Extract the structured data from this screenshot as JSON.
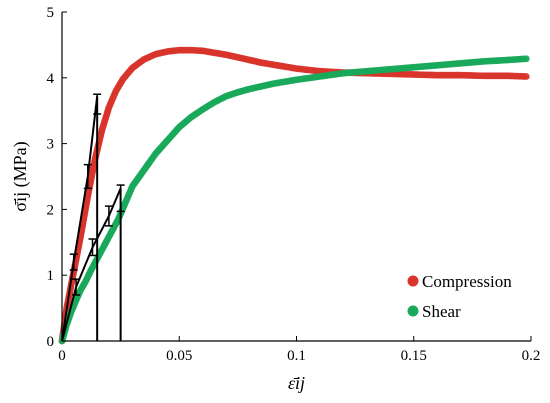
{
  "chart_data": {
    "type": "scatter",
    "title": "",
    "xlabel": "ε̄ij",
    "ylabel": "σ̄ij (MPa)",
    "xlim": [
      0,
      0.2
    ],
    "ylim": [
      0,
      5
    ],
    "x_ticks": [
      "0",
      "0.05",
      "0.1",
      "0.15",
      "0.2"
    ],
    "y_ticks": [
      "0",
      "1",
      "2",
      "3",
      "4",
      "5"
    ],
    "grid": false,
    "legend_position": "bottom-right",
    "series": [
      {
        "name": "Compression",
        "color": "#d8342c",
        "points": [
          [
            0,
            0
          ],
          [
            0.002,
            0.5
          ],
          [
            0.005,
            1.05
          ],
          [
            0.008,
            1.6
          ],
          [
            0.011,
            2.2
          ],
          [
            0.014,
            2.75
          ],
          [
            0.017,
            3.2
          ],
          [
            0.02,
            3.55
          ],
          [
            0.023,
            3.8
          ],
          [
            0.026,
            3.98
          ],
          [
            0.03,
            4.15
          ],
          [
            0.035,
            4.28
          ],
          [
            0.04,
            4.36
          ],
          [
            0.045,
            4.4
          ],
          [
            0.05,
            4.42
          ],
          [
            0.055,
            4.42
          ],
          [
            0.06,
            4.41
          ],
          [
            0.065,
            4.38
          ],
          [
            0.07,
            4.35
          ],
          [
            0.075,
            4.31
          ],
          [
            0.08,
            4.27
          ],
          [
            0.085,
            4.23
          ],
          [
            0.09,
            4.2
          ],
          [
            0.095,
            4.17
          ],
          [
            0.1,
            4.14
          ],
          [
            0.105,
            4.12
          ],
          [
            0.11,
            4.1
          ],
          [
            0.115,
            4.09
          ],
          [
            0.12,
            4.08
          ],
          [
            0.13,
            4.07
          ],
          [
            0.14,
            4.06
          ],
          [
            0.15,
            4.05
          ],
          [
            0.16,
            4.04
          ],
          [
            0.17,
            4.04
          ],
          [
            0.18,
            4.03
          ],
          [
            0.19,
            4.03
          ],
          [
            0.198,
            4.02
          ]
        ]
      },
      {
        "name": "Shear",
        "color": "#1aa85a",
        "points": [
          [
            0,
            0
          ],
          [
            0.002,
            0.25
          ],
          [
            0.004,
            0.45
          ],
          [
            0.006,
            0.62
          ],
          [
            0.008,
            0.78
          ],
          [
            0.01,
            0.9
          ],
          [
            0.012,
            1.05
          ],
          [
            0.015,
            1.25
          ],
          [
            0.018,
            1.45
          ],
          [
            0.021,
            1.65
          ],
          [
            0.024,
            1.85
          ],
          [
            0.027,
            2.1
          ],
          [
            0.03,
            2.35
          ],
          [
            0.033,
            2.5
          ],
          [
            0.036,
            2.65
          ],
          [
            0.04,
            2.85
          ],
          [
            0.045,
            3.05
          ],
          [
            0.05,
            3.25
          ],
          [
            0.055,
            3.4
          ],
          [
            0.06,
            3.52
          ],
          [
            0.065,
            3.63
          ],
          [
            0.07,
            3.72
          ],
          [
            0.075,
            3.78
          ],
          [
            0.08,
            3.83
          ],
          [
            0.085,
            3.87
          ],
          [
            0.09,
            3.91
          ],
          [
            0.095,
            3.94
          ],
          [
            0.1,
            3.97
          ],
          [
            0.11,
            4.02
          ],
          [
            0.12,
            4.07
          ],
          [
            0.13,
            4.1
          ],
          [
            0.14,
            4.13
          ],
          [
            0.15,
            4.16
          ],
          [
            0.16,
            4.19
          ],
          [
            0.17,
            4.22
          ],
          [
            0.18,
            4.25
          ],
          [
            0.19,
            4.27
          ],
          [
            0.198,
            4.29
          ]
        ]
      }
    ],
    "error_bar_lines": [
      {
        "color": "#000000",
        "points": [
          [
            0,
            0
          ],
          [
            0.005,
            1.2
          ],
          [
            0.011,
            2.5
          ],
          [
            0.015,
            3.72
          ],
          [
            0.015,
            0
          ]
        ],
        "error_bars": [
          {
            "x": 0.005,
            "low": 1.08,
            "high": 1.32
          },
          {
            "x": 0.011,
            "low": 2.32,
            "high": 2.68
          },
          {
            "x": 0.015,
            "low": 3.45,
            "high": 3.75
          }
        ]
      },
      {
        "color": "#000000",
        "points": [
          [
            0,
            0
          ],
          [
            0.006,
            0.82
          ],
          [
            0.013,
            1.42
          ],
          [
            0.02,
            1.9
          ],
          [
            0.025,
            2.32
          ],
          [
            0.025,
            0
          ]
        ],
        "error_bars": [
          {
            "x": 0.006,
            "low": 0.7,
            "high": 0.94
          },
          {
            "x": 0.013,
            "low": 1.3,
            "high": 1.55
          },
          {
            "x": 0.02,
            "low": 1.75,
            "high": 2.05
          },
          {
            "x": 0.025,
            "low": 1.97,
            "high": 2.37
          }
        ]
      }
    ]
  }
}
